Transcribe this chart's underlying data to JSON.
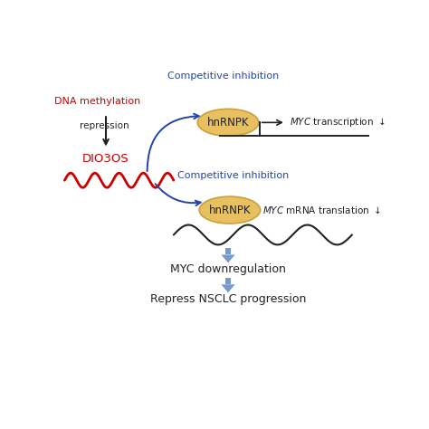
{
  "bg_color": "#ffffff",
  "dna_methylation_text": "DNA methylation",
  "dna_methylation_color": "#cc0000",
  "repression_text": "repression",
  "repression_color": "#222222",
  "dio3os_text": "DIO3OS",
  "dio3os_color": "#cc0000",
  "competitive_inhibition": "Competitive inhibition",
  "competitive_color": "#2244aa",
  "hnrnpk_text": "hnRNPK",
  "hnrnpk_fill": "#e8c060",
  "hnrnpk_edge": "#c8a040",
  "hnrnpk_text_color": "#222222",
  "myc_downregulation": "MYC downregulation",
  "repress_nsclc": "Repress NSCLC progression",
  "arrow_blue": "#7799cc",
  "arrow_black": "#222222",
  "line_color": "#222222"
}
